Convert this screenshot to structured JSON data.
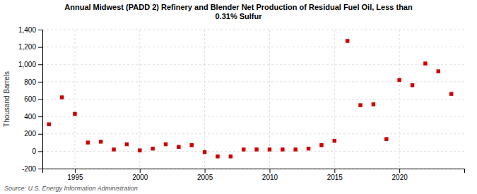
{
  "chart_data": {
    "type": "scatter",
    "title": "Annual Midwest (PADD 2) Refinery and Blender Net Production of Residual Fuel Oil, Less than\n0.31% Sulfur",
    "ylabel": "Thousand Barrels",
    "annotations": [
      "Source: U.S. Energy Information Administration"
    ],
    "x": [
      1993,
      1994,
      1995,
      1996,
      1997,
      1998,
      1999,
      2000,
      2001,
      2002,
      2003,
      2004,
      2005,
      2006,
      2007,
      2008,
      2009,
      2010,
      2011,
      2012,
      2013,
      2014,
      2015,
      2016,
      2017,
      2018,
      2019,
      2020,
      2021,
      2022,
      2023,
      2024
    ],
    "values": [
      310,
      620,
      430,
      100,
      110,
      20,
      80,
      10,
      30,
      80,
      50,
      70,
      -10,
      -60,
      -60,
      20,
      20,
      20,
      20,
      20,
      30,
      70,
      120,
      1270,
      530,
      540,
      140,
      820,
      760,
      1010,
      920,
      660
    ],
    "color": "#cc0000",
    "marker": "square",
    "xlim": [
      1992.5,
      2025
    ],
    "xticks": [
      1995,
      2000,
      2005,
      2010,
      2015,
      2020
    ],
    "ylim": [
      -200,
      1400
    ],
    "yticks": [
      -200,
      0,
      200,
      400,
      600,
      800,
      {
        "value": 1000,
        "label": "1,000"
      },
      {
        "value": 1200,
        "label": "1,200"
      },
      {
        "value": 1400,
        "label": "1,400"
      }
    ],
    "grid": true
  }
}
